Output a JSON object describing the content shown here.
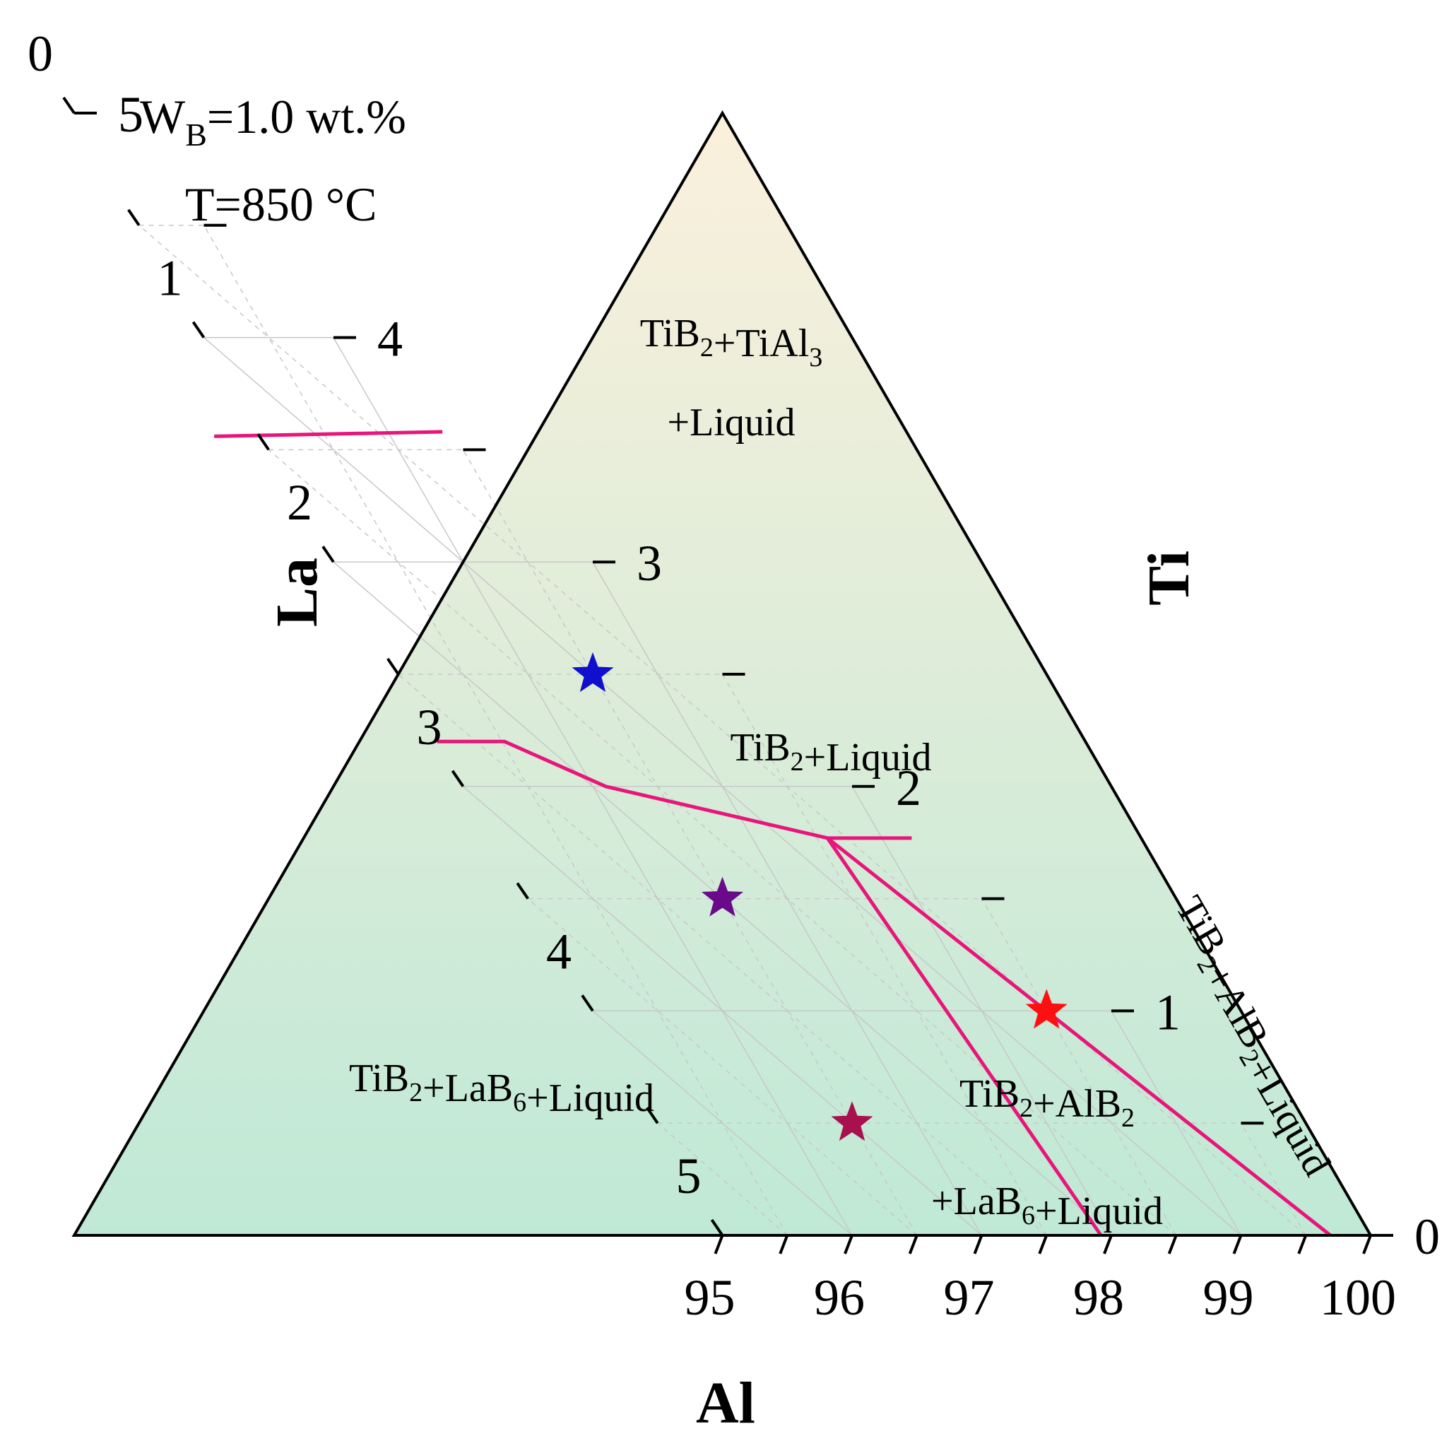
{
  "chart_data": {
    "type": "ternary",
    "annotation": {
      "line1_main": "W",
      "line1_sub": "B",
      "line1_rest": "=1.0 wt.%",
      "line2": "T=850 °C"
    },
    "axes": {
      "bottom": {
        "title": "Al",
        "ticks": [
          "95",
          "96",
          "97",
          "98",
          "99",
          "100"
        ],
        "range": [
          95,
          100
        ]
      },
      "left": {
        "title": "La",
        "ticks": [
          "0",
          "1",
          "2",
          "3",
          "4",
          "5"
        ],
        "range": [
          0,
          5
        ]
      },
      "right": {
        "title": "Ti",
        "ticks": [
          "0",
          "1",
          "2",
          "3",
          "4",
          "5"
        ],
        "range": [
          0,
          5
        ]
      }
    },
    "regions": [
      {
        "lines": [
          [
            {
              "t": "TiB",
              "s": "2"
            },
            {
              "t": "+TiAl",
              "s": "3"
            }
          ],
          [
            {
              "t": "+Liquid"
            }
          ]
        ]
      },
      {
        "lines": [
          [
            {
              "t": "TiB",
              "s": "2"
            },
            {
              "t": "+Liquid"
            }
          ]
        ]
      },
      {
        "lines": [
          [
            {
              "t": "TiB",
              "s": "2"
            },
            {
              "t": "+LaB",
              "s": "6"
            },
            {
              "t": "+Liquid"
            }
          ]
        ]
      },
      {
        "lines": [
          [
            {
              "t": "TiB",
              "s": "2"
            },
            {
              "t": "+AlB",
              "s": "2"
            }
          ],
          [
            {
              "t": "+LaB",
              "s": "6"
            },
            {
              "t": "+Liquid"
            }
          ]
        ]
      },
      {
        "lines": [
          [
            {
              "t": "TiB",
              "s": "2"
            },
            {
              "t": "+AlB",
              "s": "2"
            },
            {
              "t": "+Liquid"
            }
          ]
        ]
      }
    ],
    "boundaries": [
      {
        "points": [
          {
            "al": 96.64,
            "la": 1.8,
            "ti": 3.56
          },
          {
            "al": 98.39,
            "la": 0.0,
            "ti": 3.58
          }
        ]
      },
      {
        "points": [
          {
            "al": 96.0,
            "la": 2.8,
            "ti": 2.2
          },
          {
            "al": 97.3,
            "la": 2.28,
            "ti": 2.2
          },
          {
            "al": 98.1,
            "la": 1.9,
            "ti": 2.0
          },
          {
            "al": 98.58,
            "la": 0.65,
            "ti": 1.77
          },
          {
            "al": 99.23,
            "la": 0.0,
            "ti": 1.77
          }
        ]
      },
      {
        "points": [
          {
            "al": 98.58,
            "la": 0.65,
            "ti": 1.77
          },
          {
            "al": 97.92,
            "la": 2.08,
            "ti": 0.0
          }
        ]
      },
      {
        "points": [
          {
            "al": 98.58,
            "la": 0.65,
            "ti": 1.77
          },
          {
            "al": 99.69,
            "la": 0.31,
            "ti": 0.0
          }
        ]
      }
    ],
    "points": [
      {
        "al": 96.5,
        "la": 1.0,
        "ti": 2.5,
        "color": "#1010cc"
      },
      {
        "al": 96.5,
        "la": 2.0,
        "ti": 1.5,
        "color": "#6a0a8a"
      },
      {
        "al": 96.5,
        "la": 3.0,
        "ti": 0.5,
        "color": "#a8104e"
      },
      {
        "al": 98.5,
        "la": 0.5,
        "ti": 1.0,
        "color": "#ff1010"
      }
    ],
    "colors": {
      "boundary": "#e8157a",
      "fill_top": "#fbf0dc",
      "fill_bottom": "#bfe9d6",
      "frame": "#000000",
      "grid": "#c8c8c8"
    }
  }
}
